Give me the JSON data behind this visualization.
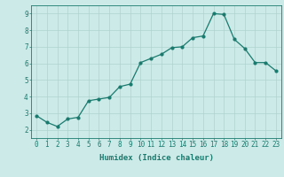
{
  "x": [
    0,
    1,
    2,
    3,
    4,
    5,
    6,
    7,
    8,
    9,
    10,
    11,
    12,
    13,
    14,
    15,
    16,
    17,
    18,
    19,
    20,
    21,
    22,
    23
  ],
  "y": [
    2.85,
    2.45,
    2.2,
    2.65,
    2.75,
    3.75,
    3.85,
    3.95,
    4.6,
    4.75,
    6.05,
    6.3,
    6.55,
    6.95,
    7.0,
    7.55,
    7.65,
    9.0,
    8.95,
    7.45,
    6.9,
    6.05,
    6.05,
    5.55
  ],
  "line_color": "#1a7a6e",
  "marker": "o",
  "markersize": 2.0,
  "linewidth": 0.9,
  "xlabel": "Humidex (Indice chaleur)",
  "xlim": [
    -0.5,
    23.5
  ],
  "ylim": [
    1.5,
    9.5
  ],
  "yticks": [
    2,
    3,
    4,
    5,
    6,
    7,
    8,
    9
  ],
  "xticks": [
    0,
    1,
    2,
    3,
    4,
    5,
    6,
    7,
    8,
    9,
    10,
    11,
    12,
    13,
    14,
    15,
    16,
    17,
    18,
    19,
    20,
    21,
    22,
    23
  ],
  "bg_color": "#cceae7",
  "grid_color": "#aed4d0",
  "label_fontsize": 6.5,
  "tick_fontsize": 5.5
}
